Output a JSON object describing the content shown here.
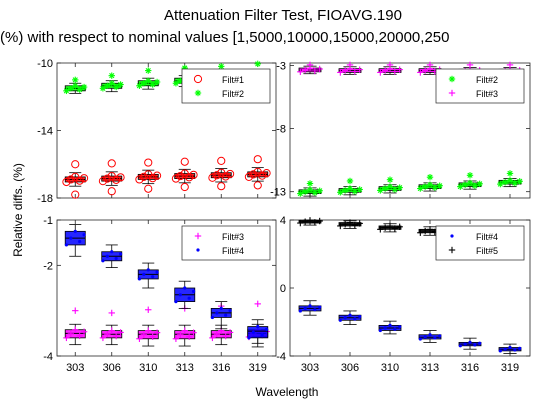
{
  "figure": {
    "title_line1": "Attenuation Filter Test, FIOAVG.190",
    "title_line2": "(%) with respect to nominal values [1,5000,10000,15000,20000,250",
    "ylabel": "Relative diffs. (%)",
    "xlabel": "Wavelength"
  },
  "chart_data": [
    {
      "type": "boxplot",
      "panel": "top-left",
      "categories": [
        "303",
        "306",
        "310",
        "313",
        "316",
        "319"
      ],
      "ylim": [
        -18,
        -10
      ],
      "yticks": [
        "-10",
        "-14",
        "-18"
      ],
      "legend": {
        "placement": "top-right",
        "entries": [
          {
            "label": "Filt#1",
            "marker": "o",
            "color": "#ff0000"
          },
          {
            "label": "Filt#2",
            "marker": "*",
            "color": "#00ff00"
          }
        ]
      },
      "series": [
        {
          "name": "Filt#1",
          "color": "#ff0000",
          "marker": "o",
          "median": [
            -16.9,
            -16.85,
            -16.75,
            -16.7,
            -16.65,
            -16.6
          ],
          "q1": [
            -17.05,
            -17.0,
            -16.9,
            -16.85,
            -16.8,
            -16.75
          ],
          "q3": [
            -16.75,
            -16.7,
            -16.6,
            -16.55,
            -16.5,
            -16.45
          ],
          "whisker_low": [
            -17.3,
            -17.25,
            -17.15,
            -17.1,
            -17.05,
            -17.0
          ],
          "whisker_high": [
            -16.5,
            -16.45,
            -16.35,
            -16.3,
            -16.25,
            -16.2
          ],
          "outliers_high": [
            -16.0,
            -15.95,
            -15.9,
            -15.85,
            -15.8,
            -15.7
          ],
          "outliers_low": [
            -17.8,
            -17.6,
            -17.45,
            -17.35,
            -17.3,
            -17.25
          ]
        },
        {
          "name": "Filt#2",
          "color": "#00ff00",
          "marker": "*",
          "median": [
            -11.5,
            -11.35,
            -11.2,
            -11.05,
            -10.9,
            -10.85
          ],
          "q1": [
            -11.65,
            -11.5,
            -11.35,
            -11.2,
            -11.05,
            -11.0
          ],
          "q3": [
            -11.35,
            -11.2,
            -11.05,
            -10.9,
            -10.75,
            -10.7
          ],
          "whisker_low": [
            -11.8,
            -11.7,
            -11.55,
            -11.4,
            -11.25,
            -11.2
          ],
          "whisker_high": [
            -11.2,
            -11.05,
            -10.9,
            -10.75,
            -10.6,
            -10.55
          ],
          "outliers_high": [
            -11.0,
            -10.75,
            -10.45,
            -10.3,
            -10.2,
            -10.05
          ],
          "outliers_low": []
        }
      ]
    },
    {
      "type": "boxplot",
      "panel": "top-right",
      "categories": [
        "303",
        "306",
        "310",
        "313",
        "316",
        "319"
      ],
      "ylim": [
        -13.5,
        -2.8
      ],
      "yticks": [
        "-3",
        "-8",
        "-13"
      ],
      "legend": {
        "placement": "top-right",
        "entries": [
          {
            "label": "Filt#2",
            "marker": "*",
            "color": "#00ff00"
          },
          {
            "label": "Filt#3",
            "marker": "+",
            "color": "#ff00ff"
          }
        ]
      },
      "series": [
        {
          "name": "Filt#2",
          "color": "#00ff00",
          "marker": "*",
          "median": [
            -13.0,
            -12.9,
            -12.75,
            -12.6,
            -12.45,
            -12.25
          ],
          "q1": [
            -13.15,
            -13.05,
            -12.9,
            -12.75,
            -12.6,
            -12.4
          ],
          "q3": [
            -12.85,
            -12.75,
            -12.6,
            -12.45,
            -12.3,
            -12.1
          ],
          "whisker_low": [
            -13.35,
            -13.25,
            -13.1,
            -12.95,
            -12.8,
            -12.6
          ],
          "whisker_high": [
            -12.7,
            -12.6,
            -12.45,
            -12.3,
            -12.15,
            -11.95
          ],
          "outliers_high": [
            -12.35,
            -12.15,
            -12.05,
            -11.85,
            -11.7,
            -11.55
          ],
          "outliers_low": []
        },
        {
          "name": "Filt#3",
          "color": "#ff00ff",
          "marker": "+",
          "median": [
            -3.35,
            -3.4,
            -3.4,
            -3.4,
            -3.45,
            -3.45
          ],
          "q1": [
            -3.5,
            -3.55,
            -3.55,
            -3.55,
            -3.6,
            -3.6
          ],
          "q3": [
            -3.2,
            -3.25,
            -3.25,
            -3.25,
            -3.3,
            -3.3
          ],
          "whisker_low": [
            -3.65,
            -3.7,
            -3.7,
            -3.7,
            -3.75,
            -3.75
          ],
          "whisker_high": [
            -3.05,
            -3.1,
            -3.1,
            -3.1,
            -3.15,
            -3.15
          ],
          "outliers_high": [
            -2.95,
            -2.95,
            -2.95,
            -2.95,
            -2.95,
            -2.95
          ],
          "outliers_low": []
        }
      ]
    },
    {
      "type": "boxplot",
      "panel": "bottom-left",
      "categories": [
        "303",
        "306",
        "310",
        "313",
        "316",
        "319"
      ],
      "ylim": [
        -4,
        -1
      ],
      "yticks": [
        "-1",
        "-2",
        "-4"
      ],
      "legend": {
        "placement": "top-right",
        "entries": [
          {
            "label": "Filt#3",
            "marker": "+",
            "color": "#ff00ff"
          },
          {
            "label": "Filt#4",
            "marker": ".",
            "color": "#0000ff"
          }
        ]
      },
      "series": [
        {
          "name": "Filt#3",
          "color": "#ff00ff",
          "marker": "+",
          "median": [
            -3.5,
            -3.52,
            -3.52,
            -3.52,
            -3.52,
            -3.5
          ],
          "q1": [
            -3.6,
            -3.6,
            -3.62,
            -3.62,
            -3.6,
            -3.58
          ],
          "q3": [
            -3.42,
            -3.44,
            -3.44,
            -3.44,
            -3.44,
            -3.42
          ],
          "whisker_low": [
            -3.75,
            -3.75,
            -3.78,
            -3.78,
            -3.75,
            -3.72
          ],
          "whisker_high": [
            -3.3,
            -3.32,
            -3.32,
            -3.32,
            -3.32,
            -3.3
          ],
          "outliers_high": [
            -3.0,
            -3.05,
            -2.98,
            -2.95,
            -2.9,
            -2.85
          ],
          "outliers_low": []
        },
        {
          "name": "Filt#4",
          "color": "#0000ff",
          "marker": ".",
          "median": [
            -1.4,
            -1.8,
            -2.2,
            -2.65,
            -3.05,
            -3.45
          ],
          "q1": [
            -1.55,
            -1.9,
            -2.3,
            -2.8,
            -3.15,
            -3.6
          ],
          "q3": [
            -1.25,
            -1.7,
            -2.1,
            -2.5,
            -2.95,
            -3.35
          ],
          "whisker_low": [
            -1.8,
            -2.05,
            -2.5,
            -2.95,
            -3.4,
            -3.8
          ],
          "whisker_high": [
            -1.1,
            -1.55,
            -1.95,
            -2.35,
            -2.8,
            -3.2
          ],
          "outliers_high": [],
          "outliers_low": []
        }
      ]
    },
    {
      "type": "boxplot",
      "panel": "bottom-right",
      "categories": [
        "303",
        "306",
        "310",
        "313",
        "316",
        "319"
      ],
      "ylim": [
        -4,
        4
      ],
      "yticks": [
        "4",
        "0",
        "-4"
      ],
      "legend": {
        "placement": "top-right",
        "entries": [
          {
            "label": "Filt#4",
            "marker": ".",
            "color": "#0000ff"
          },
          {
            "label": "Filt#5",
            "marker": "+",
            "color": "#000000"
          }
        ]
      },
      "series": [
        {
          "name": "Filt#4",
          "color": "#0000ff",
          "marker": ".",
          "median": [
            -1.2,
            -1.75,
            -2.35,
            -2.9,
            -3.3,
            -3.6
          ],
          "q1": [
            -1.35,
            -1.9,
            -2.5,
            -3.0,
            -3.4,
            -3.7
          ],
          "q3": [
            -1.05,
            -1.6,
            -2.2,
            -2.75,
            -3.2,
            -3.5
          ],
          "whisker_low": [
            -1.6,
            -2.15,
            -2.7,
            -3.2,
            -3.6,
            -3.85
          ],
          "whisker_high": [
            -0.75,
            -1.35,
            -1.95,
            -2.5,
            -2.95,
            -3.3
          ],
          "outliers_high": [],
          "outliers_low": []
        },
        {
          "name": "Filt#5",
          "color": "#000000",
          "marker": "+",
          "median": [
            3.9,
            3.75,
            3.55,
            3.35,
            3.2,
            3.05
          ],
          "q1": [
            3.82,
            3.65,
            3.45,
            3.25,
            3.1,
            2.95
          ],
          "q3": [
            3.98,
            3.85,
            3.65,
            3.45,
            3.3,
            3.15
          ],
          "whisker_low": [
            3.7,
            3.5,
            3.3,
            3.1,
            2.95,
            2.8
          ],
          "whisker_high": [
            4.0,
            3.95,
            3.78,
            3.6,
            3.45,
            3.3
          ],
          "outliers_high": [],
          "outliers_low": []
        }
      ]
    }
  ]
}
